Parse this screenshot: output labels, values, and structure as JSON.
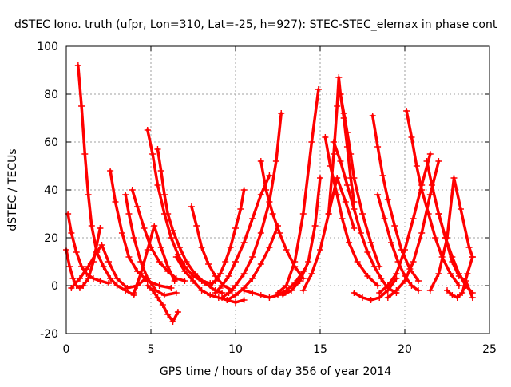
{
  "chart_data": {
    "type": "scatter",
    "title": "dSTEC Iono. truth (ufpr, Lon=310, Lat=-25, h=927): STEC-STEC_elemax in phase cont",
    "xlabel": "GPS time / hours of day 356 of year 2014",
    "ylabel": "dSTEC  / TECUs",
    "xlim": [
      0,
      25
    ],
    "ylim": [
      -20,
      100
    ],
    "xticks": [
      0,
      5,
      10,
      15,
      20,
      25
    ],
    "yticks": [
      -20,
      0,
      20,
      40,
      60,
      80,
      100
    ],
    "xtick_labels": [
      "0",
      "5",
      "10",
      "15",
      "20",
      "25"
    ],
    "ytick_labels": [
      "-20",
      "0",
      "20",
      "40",
      "60",
      "80",
      "100"
    ],
    "grid": true,
    "legend": "none",
    "marker": "+",
    "color": "#ff0000",
    "series": [
      {
        "x": [
          0.0,
          0.2,
          0.4,
          0.6,
          0.8,
          1.0,
          1.3,
          1.6,
          2.0
        ],
        "y": [
          15,
          8,
          3,
          0,
          -1,
          0,
          3,
          10,
          24
        ]
      },
      {
        "x": [
          0.1,
          0.3,
          0.6,
          0.9,
          1.2,
          1.6,
          2.0,
          2.5
        ],
        "y": [
          30,
          22,
          14,
          8,
          5,
          3,
          2,
          1
        ]
      },
      {
        "x": [
          0.7,
          0.9,
          1.1,
          1.3,
          1.5,
          1.8,
          2.2,
          2.6,
          3.0,
          3.5,
          4.0
        ],
        "y": [
          92,
          75,
          55,
          38,
          25,
          14,
          8,
          3,
          0,
          -2,
          -4
        ]
      },
      {
        "x": [
          0.3,
          0.8,
          1.3,
          1.8,
          2.1,
          2.5,
          3.0,
          3.6,
          4.2,
          4.7
        ],
        "y": [
          -1,
          3,
          8,
          14,
          17,
          10,
          3,
          -1,
          0,
          3
        ]
      },
      {
        "x": [
          2.6,
          2.9,
          3.3,
          3.7,
          4.2,
          4.8,
          5.5,
          6.2
        ],
        "y": [
          48,
          35,
          22,
          12,
          6,
          2,
          0,
          -1
        ]
      },
      {
        "x": [
          3.5,
          3.7,
          4.0,
          4.4,
          4.8,
          5.3,
          5.8,
          6.5
        ],
        "y": [
          38,
          30,
          20,
          10,
          3,
          -2,
          -4,
          -3
        ]
      },
      {
        "x": [
          3.9,
          4.2,
          4.6,
          5.0,
          5.5,
          6.0,
          6.5,
          7.0
        ],
        "y": [
          40,
          33,
          24,
          16,
          10,
          6,
          3,
          2
        ]
      },
      {
        "x": [
          4.0,
          4.4,
          4.8,
          5.2,
          5.6,
          6.0,
          6.4
        ],
        "y": [
          -3,
          5,
          15,
          25,
          16,
          8,
          2
        ]
      },
      {
        "x": [
          4.8,
          5.1,
          5.4,
          5.8,
          6.2,
          6.6,
          7.0,
          7.5,
          8.0,
          8.5
        ],
        "y": [
          65,
          55,
          42,
          30,
          20,
          13,
          8,
          4,
          2,
          1
        ]
      },
      {
        "x": [
          5.4,
          5.6,
          5.8,
          6.0,
          6.3,
          6.7,
          7.1,
          7.6,
          8.2,
          8.8,
          9.2
        ],
        "y": [
          57,
          48,
          38,
          30,
          23,
          16,
          10,
          5,
          1,
          -2,
          -3
        ]
      },
      {
        "x": [
          4.8,
          5.1,
          5.4,
          5.7,
          6.0,
          6.3,
          6.6
        ],
        "y": [
          0,
          -2,
          -5,
          -8,
          -12,
          -15,
          -11
        ]
      },
      {
        "x": [
          7.4,
          7.7,
          8.0,
          8.4,
          8.8,
          9.3,
          9.8
        ],
        "y": [
          33,
          25,
          16,
          9,
          4,
          0,
          -2
        ]
      },
      {
        "x": [
          6.5,
          7.0,
          7.5,
          8.0,
          8.5,
          9.0,
          9.5,
          10.0,
          10.5
        ],
        "y": [
          12,
          6,
          2,
          -2,
          -4,
          -5,
          -6,
          -7,
          -6
        ]
      },
      {
        "x": [
          8.5,
          8.8,
          9.1,
          9.4,
          9.7,
          10.0,
          10.3,
          10.5
        ],
        "y": [
          0,
          2,
          5,
          10,
          16,
          24,
          32,
          40
        ]
      },
      {
        "x": [
          8.8,
          9.2,
          9.6,
          10.0,
          10.5,
          11.0,
          11.5,
          12.0
        ],
        "y": [
          -3,
          0,
          4,
          10,
          18,
          28,
          38,
          46
        ]
      },
      {
        "x": [
          9.2,
          9.6,
          10.0,
          10.5,
          11.0,
          11.5,
          12.0,
          12.4,
          12.7
        ],
        "y": [
          -5,
          -3,
          0,
          5,
          12,
          22,
          35,
          52,
          72
        ]
      },
      {
        "x": [
          9.5,
          10.0,
          10.5,
          11.0,
          11.5,
          12.0,
          12.5
        ],
        "y": [
          -6,
          -4,
          -1,
          3,
          9,
          16,
          25
        ]
      },
      {
        "x": [
          11.5,
          11.8,
          12.2,
          12.6,
          13.0,
          13.5,
          14.0
        ],
        "y": [
          52,
          40,
          30,
          22,
          15,
          8,
          3
        ]
      },
      {
        "x": [
          10.5,
          11.0,
          11.5,
          12.0,
          12.5,
          13.0,
          13.5,
          14.0
        ],
        "y": [
          -2,
          -3,
          -4,
          -5,
          -4,
          -2,
          1,
          6
        ]
      },
      {
        "x": [
          12.5,
          13.0,
          13.5,
          14.0,
          14.5,
          14.9
        ],
        "y": [
          -3,
          0,
          10,
          30,
          60,
          82
        ]
      },
      {
        "x": [
          12.8,
          13.3,
          13.8,
          14.3,
          14.7,
          15.0
        ],
        "y": [
          -4,
          -2,
          2,
          10,
          25,
          45
        ]
      },
      {
        "x": [
          15.3,
          15.6,
          16.0,
          16.3,
          16.7,
          17.2,
          17.8,
          18.4
        ],
        "y": [
          62,
          50,
          38,
          28,
          18,
          10,
          4,
          0
        ]
      },
      {
        "x": [
          15.5,
          15.8,
          16.0,
          16.1,
          16.2,
          16.4,
          16.6,
          16.8,
          17.0
        ],
        "y": [
          30,
          55,
          75,
          87,
          80,
          70,
          58,
          45,
          35
        ]
      },
      {
        "x": [
          16.2,
          16.4,
          16.6,
          16.8,
          17.0,
          17.5,
          18.0,
          18.5
        ],
        "y": [
          80,
          72,
          64,
          55,
          45,
          30,
          18,
          8
        ]
      },
      {
        "x": [
          14.0,
          14.5,
          15.0,
          15.5,
          16.0,
          16.5,
          17.0
        ],
        "y": [
          -2,
          5,
          15,
          30,
          45,
          35,
          24
        ]
      },
      {
        "x": [
          15.8,
          16.2,
          16.6,
          17.0,
          17.4,
          17.8,
          18.2,
          18.6,
          19.0,
          19.5
        ],
        "y": [
          60,
          52,
          42,
          32,
          22,
          14,
          8,
          3,
          -1,
          -3
        ]
      },
      {
        "x": [
          17.0,
          17.5,
          18.0,
          18.5,
          19.0,
          19.5
        ],
        "y": [
          -3,
          -5,
          -6,
          -5,
          -2,
          3
        ]
      },
      {
        "x": [
          18.1,
          18.4,
          18.7,
          19.0,
          19.4,
          19.8,
          20.3,
          20.8
        ],
        "y": [
          71,
          58,
          46,
          36,
          25,
          15,
          7,
          2
        ]
      },
      {
        "x": [
          18.4,
          18.8,
          19.2,
          19.6,
          20.0,
          20.4,
          20.8
        ],
        "y": [
          38,
          28,
          18,
          10,
          4,
          0,
          -2
        ]
      },
      {
        "x": [
          18.5,
          19.0,
          19.5,
          20.0,
          20.5,
          21.0,
          21.5
        ],
        "y": [
          -3,
          0,
          5,
          15,
          28,
          42,
          55
        ]
      },
      {
        "x": [
          19.0,
          19.5,
          20.0,
          20.5,
          21.0,
          21.5,
          22.0
        ],
        "y": [
          -5,
          -2,
          2,
          10,
          22,
          38,
          52
        ]
      },
      {
        "x": [
          20.1,
          20.4,
          20.7,
          21.0,
          21.4,
          21.8,
          22.2,
          22.7,
          23.2
        ],
        "y": [
          73,
          62,
          50,
          40,
          30,
          20,
          12,
          5,
          0
        ]
      },
      {
        "x": [
          21.3,
          21.6,
          22.0,
          22.4,
          22.8,
          23.2,
          23.6,
          24.0
        ],
        "y": [
          52,
          42,
          30,
          20,
          12,
          5,
          0,
          -3
        ]
      },
      {
        "x": [
          21.5,
          22.0,
          22.5,
          22.9,
          23.3,
          23.8,
          24.0
        ],
        "y": [
          -2,
          5,
          20,
          45,
          32,
          16,
          12
        ]
      },
      {
        "x": [
          22.0,
          22.4,
          22.8,
          23.2,
          23.6,
          24.0
        ],
        "y": [
          30,
          20,
          10,
          4,
          2,
          -5
        ]
      },
      {
        "x": [
          22.5,
          22.8,
          23.1,
          23.4,
          23.7,
          24.0
        ],
        "y": [
          -2,
          -4,
          -5,
          -3,
          5,
          12
        ]
      }
    ]
  }
}
